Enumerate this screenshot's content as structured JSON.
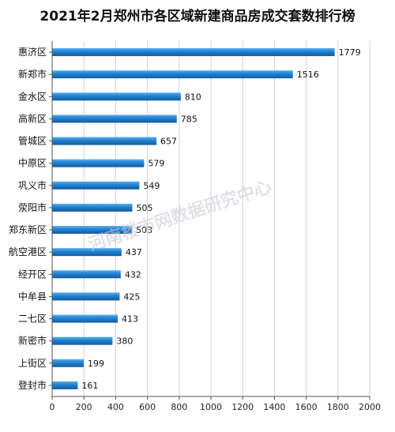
{
  "chart_data": {
    "type": "bar",
    "orientation": "horizontal",
    "title": "2021年2月郑州市各区域新建商品房成交套数排行榜",
    "categories": [
      "惠济区",
      "新郑市",
      "金水区",
      "高新区",
      "管城区",
      "中原区",
      "巩义市",
      "荥阳市",
      "郑东新区",
      "航空港区",
      "经开区",
      "中牟县",
      "二七区",
      "新密市",
      "上街区",
      "登封市"
    ],
    "values": [
      1779,
      1516,
      810,
      785,
      657,
      579,
      549,
      505,
      503,
      437,
      432,
      425,
      413,
      380,
      199,
      161
    ],
    "xlim": [
      0,
      2000
    ],
    "xticks": [
      0,
      200,
      400,
      600,
      800,
      1000,
      1200,
      1400,
      1600,
      1800,
      2000
    ],
    "grid": true,
    "legend": "none",
    "watermark": "河南楼市网数据研究中心",
    "colors": {
      "bar": "#1f7fd1",
      "bar_light": "#55aef0",
      "bar_dark": "#155c9c",
      "grid": "#d0d0d0",
      "axis": "#555555"
    }
  }
}
